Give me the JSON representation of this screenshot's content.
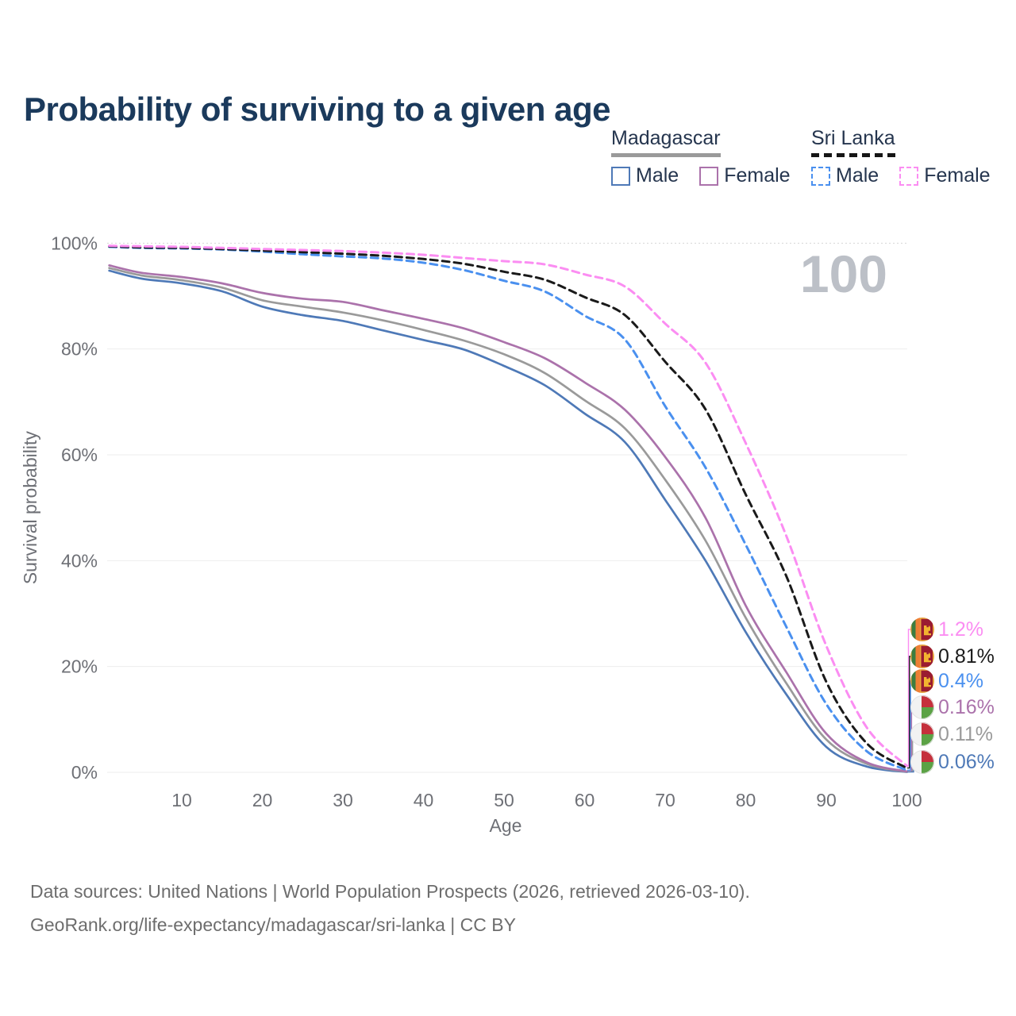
{
  "title": "Probability of surviving to a given age",
  "legend": {
    "groups": [
      {
        "label": "Madagascar",
        "underline_style": "solid",
        "underline_color": "#9a9a9a",
        "items": [
          {
            "label": "Male",
            "color": "#4e79b7",
            "dash": false
          },
          {
            "label": "Female",
            "color": "#ab72ab",
            "dash": false
          }
        ]
      },
      {
        "label": "Sri Lanka",
        "underline_style": "dashed",
        "underline_color": "#161616",
        "items": [
          {
            "label": "Male",
            "color": "#4a90ef",
            "dash": true
          },
          {
            "label": "Female",
            "color": "#fb8df2",
            "dash": true
          }
        ]
      }
    ]
  },
  "chart_data": {
    "type": "line",
    "title": "Probability of surviving to a given age",
    "xlabel": "Age",
    "ylabel": "Survival probability",
    "xlim": [
      1,
      100
    ],
    "ylim": [
      0,
      100
    ],
    "grid": true,
    "x_ticks": [
      10,
      20,
      30,
      40,
      50,
      60,
      70,
      80,
      90,
      100
    ],
    "y_ticks": [
      "0%",
      "20%",
      "40%",
      "60%",
      "80%",
      "100%"
    ],
    "watermark": "100",
    "x": [
      1,
      5,
      10,
      15,
      20,
      25,
      30,
      35,
      40,
      45,
      50,
      55,
      60,
      65,
      70,
      75,
      80,
      85,
      90,
      95,
      100
    ],
    "series": [
      {
        "name": "Madagascar Male",
        "country": "Madagascar",
        "sex": "Male",
        "color": "#4e79b7",
        "line": "solid",
        "values": [
          94.8,
          93.3,
          92.4,
          90.9,
          88.0,
          86.4,
          85.3,
          83.5,
          81.7,
          79.9,
          76.8,
          73.2,
          67.8,
          62.4,
          51.5,
          40.0,
          26.5,
          14.8,
          4.8,
          1.1,
          0.06
        ]
      },
      {
        "name": "Madagascar All",
        "country": "Madagascar",
        "sex": "All",
        "color": "#9a9a9a",
        "line": "solid",
        "values": [
          95.3,
          93.9,
          93.0,
          91.6,
          89.2,
          88.0,
          86.9,
          85.4,
          83.6,
          81.6,
          79.0,
          75.5,
          70.3,
          65.0,
          55.3,
          43.8,
          29.2,
          16.9,
          6.2,
          1.6,
          0.11
        ]
      },
      {
        "name": "Madagascar Female",
        "country": "Madagascar",
        "sex": "Female",
        "color": "#ab72ab",
        "line": "solid",
        "values": [
          95.8,
          94.4,
          93.6,
          92.4,
          90.6,
          89.5,
          88.9,
          87.3,
          85.7,
          83.9,
          81.3,
          78.3,
          73.7,
          68.5,
          59.6,
          48.1,
          31.5,
          19.0,
          7.3,
          1.9,
          0.16
        ]
      },
      {
        "name": "Sri Lanka Male",
        "country": "Sri Lanka",
        "sex": "Male",
        "color": "#4a90ef",
        "line": "dashed",
        "values": [
          99.3,
          99.1,
          99.0,
          98.8,
          98.4,
          97.9,
          97.5,
          97.1,
          96.3,
          94.9,
          92.9,
          90.9,
          86.3,
          81.8,
          69.2,
          57.6,
          43.0,
          27.6,
          12.9,
          4.0,
          0.4
        ]
      },
      {
        "name": "Sri Lanka All",
        "country": "Sri Lanka",
        "sex": "All",
        "color": "#1a1a1a",
        "line": "dashed",
        "values": [
          99.4,
          99.2,
          99.1,
          98.9,
          98.6,
          98.3,
          98.0,
          97.6,
          97.0,
          96.1,
          94.6,
          93.1,
          89.8,
          86.4,
          77.6,
          68.6,
          52.5,
          37.2,
          17.1,
          5.5,
          0.81
        ]
      },
      {
        "name": "Sri Lanka Female",
        "country": "Sri Lanka",
        "sex": "Female",
        "color": "#fb8df2",
        "line": "dashed",
        "values": [
          99.5,
          99.4,
          99.3,
          99.1,
          98.9,
          98.7,
          98.5,
          98.2,
          97.8,
          97.2,
          96.6,
          96.0,
          94.1,
          91.8,
          84.8,
          77.4,
          62.2,
          44.8,
          23.9,
          8.5,
          1.2
        ]
      }
    ],
    "end_labels": [
      {
        "value": "1.2%",
        "color": "#fb8df2",
        "flag": "sri-lanka",
        "series": "Sri Lanka Female"
      },
      {
        "value": "0.81%",
        "color": "#1a1a1a",
        "flag": "sri-lanka",
        "series": "Sri Lanka All"
      },
      {
        "value": "0.4%",
        "color": "#4a90ef",
        "flag": "sri-lanka",
        "series": "Sri Lanka Male"
      },
      {
        "value": "0.16%",
        "color": "#ab72ab",
        "flag": "madagascar",
        "series": "Madagascar Female"
      },
      {
        "value": "0.11%",
        "color": "#9a9a9a",
        "flag": "madagascar",
        "series": "Madagascar All"
      },
      {
        "value": "0.06%",
        "color": "#4e79b7",
        "flag": "madagascar",
        "series": "Madagascar Male"
      }
    ]
  },
  "footer": {
    "line1": "Data sources: United Nations | World Population Prospects (2026, retrieved 2026-03-10).",
    "line2": "GeoRank.org/life-expectancy/madagascar/sri-lanka | CC BY"
  }
}
